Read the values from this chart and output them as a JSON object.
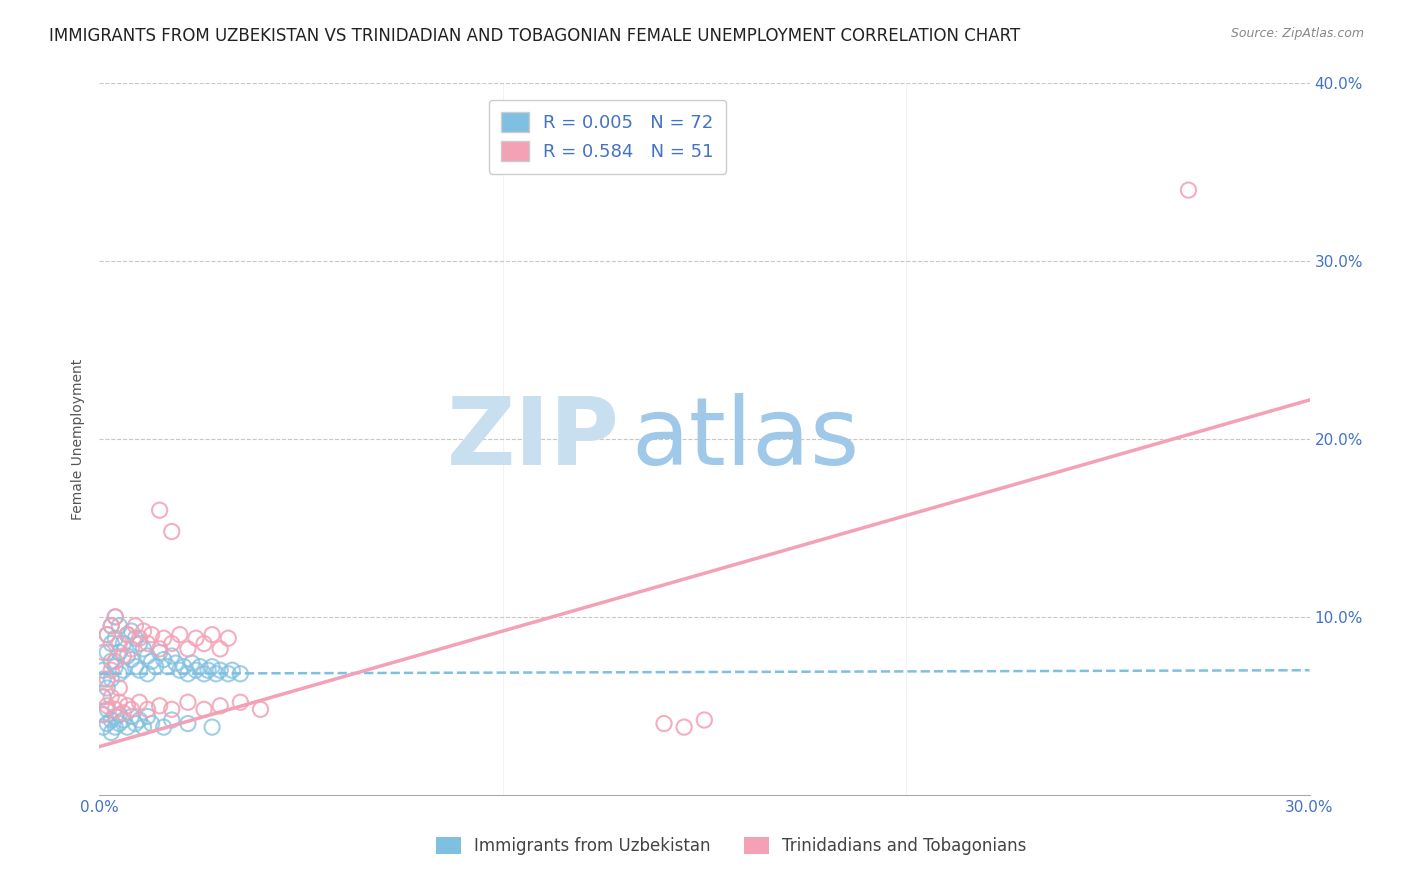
{
  "title": "IMMIGRANTS FROM UZBEKISTAN VS TRINIDADIAN AND TOBAGONIAN FEMALE UNEMPLOYMENT CORRELATION CHART",
  "source": "Source: ZipAtlas.com",
  "ylabel": "Female Unemployment",
  "xlim": [
    0.0,
    0.3
  ],
  "ylim": [
    0.0,
    0.4
  ],
  "xticks": [
    0.0,
    0.1,
    0.2,
    0.3
  ],
  "xtick_labels": [
    "0.0%",
    "",
    "",
    "30.0%"
  ],
  "yticks": [
    0.0,
    0.1,
    0.2,
    0.3,
    0.4
  ],
  "ytick_labels": [
    "",
    "10.0%",
    "20.0%",
    "30.0%",
    "40.0%"
  ],
  "blue_color": "#7fbfdf",
  "pink_color": "#f4a0b5",
  "blue_R": 0.005,
  "blue_N": 72,
  "pink_R": 0.584,
  "pink_N": 51,
  "legend_label_blue": "Immigrants from Uzbekistan",
  "legend_label_pink": "Trinidadians and Tobagonians",
  "blue_scatter_x": [
    0.001,
    0.001,
    0.001,
    0.002,
    0.002,
    0.002,
    0.003,
    0.003,
    0.003,
    0.003,
    0.004,
    0.004,
    0.004,
    0.005,
    0.005,
    0.005,
    0.006,
    0.006,
    0.007,
    0.007,
    0.008,
    0.008,
    0.009,
    0.009,
    0.01,
    0.01,
    0.011,
    0.012,
    0.012,
    0.013,
    0.014,
    0.015,
    0.016,
    0.017,
    0.018,
    0.019,
    0.02,
    0.021,
    0.022,
    0.023,
    0.024,
    0.025,
    0.026,
    0.027,
    0.028,
    0.029,
    0.03,
    0.032,
    0.033,
    0.035,
    0.001,
    0.001,
    0.002,
    0.002,
    0.003,
    0.003,
    0.004,
    0.004,
    0.005,
    0.005,
    0.006,
    0.007,
    0.008,
    0.009,
    0.01,
    0.011,
    0.012,
    0.013,
    0.016,
    0.018,
    0.022,
    0.028
  ],
  "blue_scatter_y": [
    0.07,
    0.065,
    0.055,
    0.08,
    0.09,
    0.06,
    0.095,
    0.085,
    0.075,
    0.065,
    0.1,
    0.088,
    0.072,
    0.095,
    0.08,
    0.068,
    0.085,
    0.07,
    0.09,
    0.078,
    0.092,
    0.076,
    0.088,
    0.072,
    0.085,
    0.07,
    0.082,
    0.078,
    0.068,
    0.075,
    0.072,
    0.08,
    0.076,
    0.072,
    0.078,
    0.074,
    0.07,
    0.072,
    0.068,
    0.074,
    0.07,
    0.072,
    0.068,
    0.07,
    0.072,
    0.068,
    0.07,
    0.068,
    0.07,
    0.068,
    0.045,
    0.038,
    0.048,
    0.04,
    0.042,
    0.035,
    0.044,
    0.038,
    0.045,
    0.04,
    0.042,
    0.038,
    0.044,
    0.04,
    0.042,
    0.038,
    0.044,
    0.04,
    0.038,
    0.042,
    0.04,
    0.038
  ],
  "pink_scatter_x": [
    0.001,
    0.001,
    0.002,
    0.002,
    0.003,
    0.003,
    0.004,
    0.004,
    0.005,
    0.005,
    0.006,
    0.007,
    0.008,
    0.009,
    0.01,
    0.011,
    0.012,
    0.013,
    0.015,
    0.016,
    0.018,
    0.02,
    0.022,
    0.024,
    0.026,
    0.028,
    0.03,
    0.032,
    0.001,
    0.002,
    0.003,
    0.004,
    0.005,
    0.006,
    0.007,
    0.008,
    0.01,
    0.012,
    0.015,
    0.018,
    0.022,
    0.026,
    0.03,
    0.035,
    0.04,
    0.015,
    0.018,
    0.14,
    0.145,
    0.15,
    0.27
  ],
  "pink_scatter_y": [
    0.08,
    0.055,
    0.09,
    0.065,
    0.095,
    0.07,
    0.1,
    0.075,
    0.085,
    0.06,
    0.078,
    0.09,
    0.082,
    0.095,
    0.088,
    0.092,
    0.085,
    0.09,
    0.082,
    0.088,
    0.085,
    0.09,
    0.082,
    0.088,
    0.085,
    0.09,
    0.082,
    0.088,
    0.045,
    0.05,
    0.055,
    0.048,
    0.052,
    0.046,
    0.05,
    0.048,
    0.052,
    0.048,
    0.05,
    0.048,
    0.052,
    0.048,
    0.05,
    0.052,
    0.048,
    0.16,
    0.148,
    0.04,
    0.038,
    0.042,
    0.34
  ],
  "blue_trend_x": [
    0.0,
    0.3
  ],
  "blue_trend_y": [
    0.068,
    0.07
  ],
  "pink_trend_x": [
    0.0,
    0.3
  ],
  "pink_trend_y": [
    0.027,
    0.222
  ],
  "watermark_zip": "ZIP",
  "watermark_atlas": "atlas",
  "background_color": "#ffffff",
  "tick_color": "#4472c4",
  "grid_color": "#c8c8c8",
  "title_fontsize": 12,
  "axis_label_fontsize": 10,
  "tick_fontsize": 11,
  "legend_fontsize": 13
}
